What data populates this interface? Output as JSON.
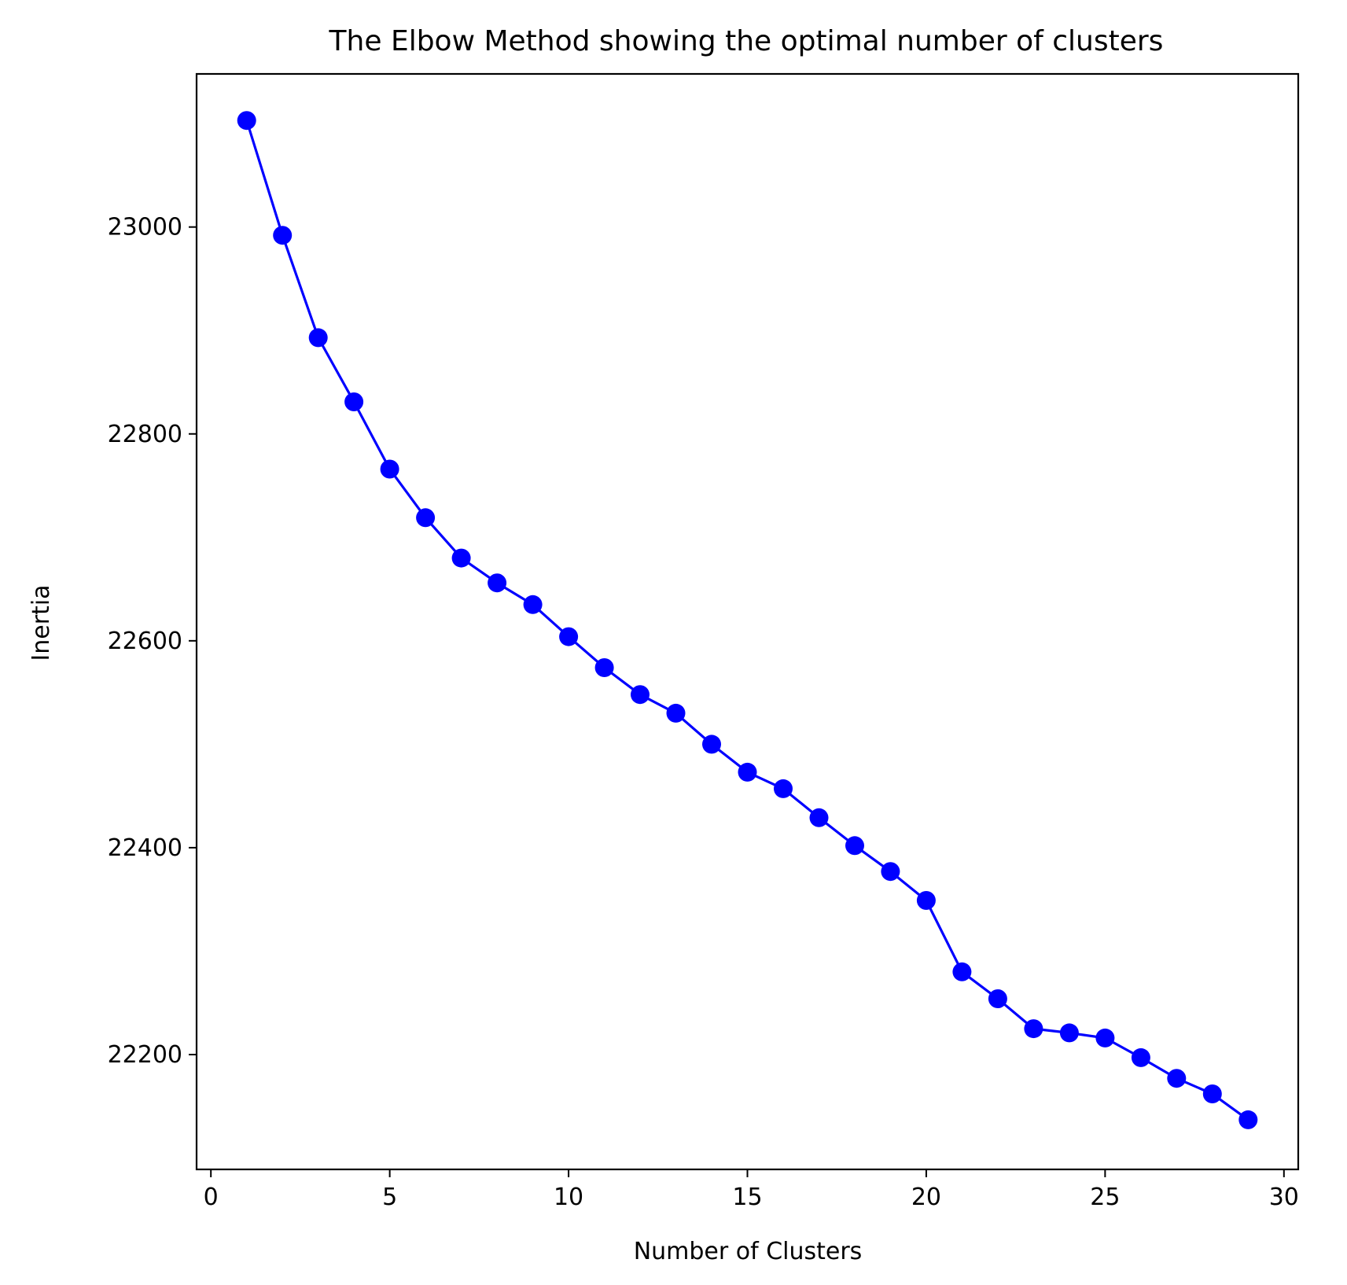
{
  "chart_data": {
    "type": "line",
    "title": "The Elbow Method showing the optimal number of clusters",
    "xlabel": "Number of Clusters",
    "ylabel": "Inertia",
    "x": [
      1,
      2,
      3,
      4,
      5,
      6,
      7,
      8,
      9,
      10,
      11,
      12,
      13,
      14,
      15,
      16,
      17,
      18,
      19,
      20,
      21,
      22,
      23,
      24,
      25,
      26,
      27,
      28,
      29
    ],
    "series": [
      {
        "values": [
          23103,
          22992,
          22893,
          22831,
          22766,
          22719,
          22680,
          22656,
          22635,
          22604,
          22574,
          22548,
          22530,
          22500,
          22473,
          22457,
          22429,
          22402,
          22377,
          22349,
          22280,
          22254,
          22225,
          22221,
          22216,
          22197,
          22177,
          22162,
          22137
        ],
        "color": "#0000ff",
        "marker": "circle"
      }
    ],
    "xlim": [
      -0.4,
      30.4
    ],
    "ylim": [
      22089,
      23148
    ],
    "xticks": [
      0,
      5,
      10,
      15,
      20,
      25,
      30
    ],
    "xtick_labels": [
      "0",
      "5",
      "10",
      "15",
      "20",
      "25",
      "30"
    ],
    "yticks": [
      22200,
      22400,
      22600,
      22800,
      23000
    ],
    "ytick_labels": [
      "22200",
      "22400",
      "22600",
      "22800",
      "23000"
    ],
    "grid": false,
    "legend": false
  }
}
